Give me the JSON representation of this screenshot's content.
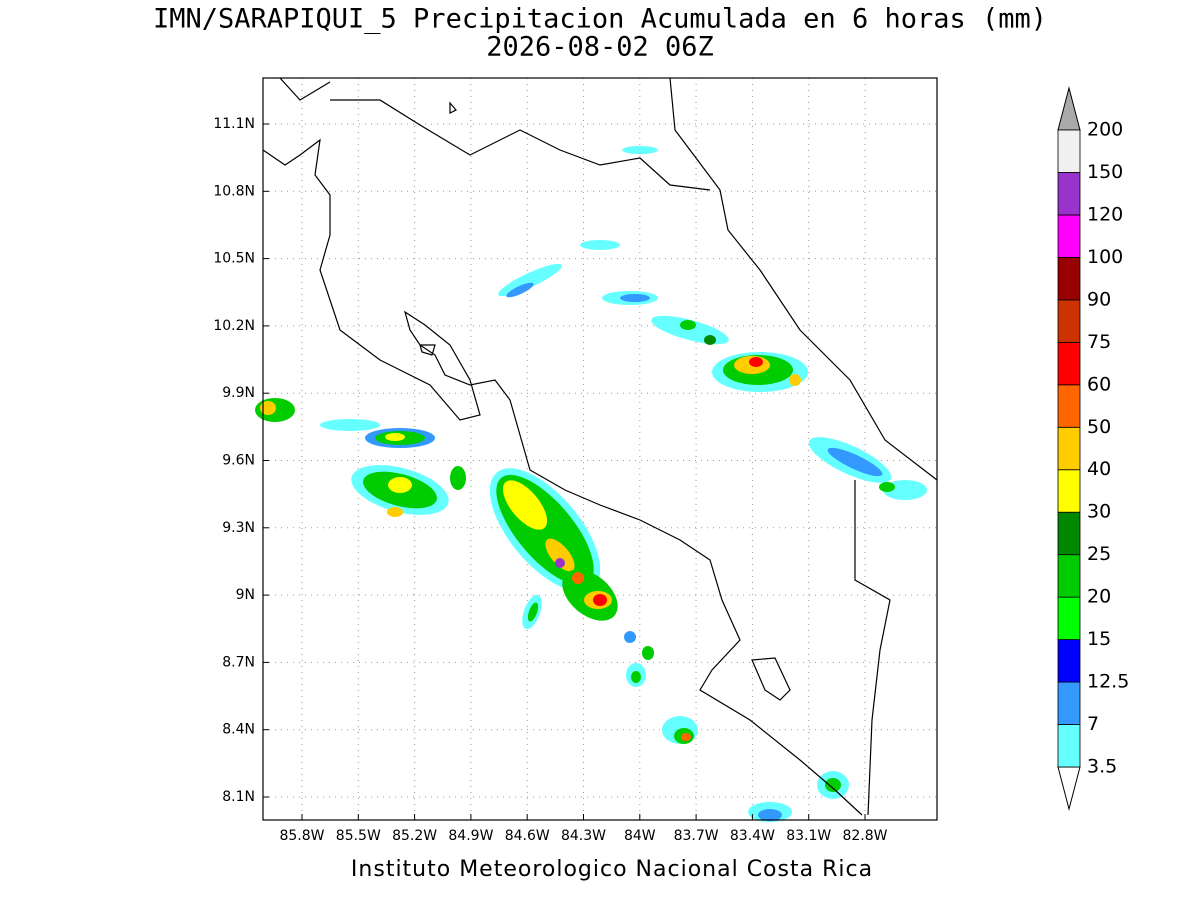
{
  "header": {
    "title": "IMN/SARAPIQUI_5 Precipitacion Acumulada en 6 horas (mm)",
    "subtitle": "2026-08-02 06Z"
  },
  "map": {
    "lat_labels": [
      "11.1N",
      "10.8N",
      "10.5N",
      "10.2N",
      "9.9N",
      "9.6N",
      "9.3N",
      "9N",
      "8.7N",
      "8.4N",
      "8.1N"
    ],
    "lon_labels": [
      "85.8W",
      "85.5W",
      "85.2W",
      "84.9W",
      "84.6W",
      "84.3W",
      "84W",
      "83.7W",
      "83.4W",
      "83.1W",
      "82.8W"
    ]
  },
  "colorbar": {
    "levels": [
      3.5,
      7,
      12.5,
      15,
      20,
      25,
      30,
      40,
      50,
      60,
      75,
      90,
      100,
      120,
      150,
      200
    ],
    "colors": [
      "#66ffff",
      "#3399ff",
      "#0000ff",
      "#00ff00",
      "#00cc00",
      "#008800",
      "#ffff00",
      "#ffcc00",
      "#ff6600",
      "#ff0000",
      "#cc3300",
      "#990000",
      "#ff00ff",
      "#9933cc",
      "#f0f0f0"
    ],
    "under_color": "#ffffff",
    "over_color": "#aaaaaa"
  },
  "footer": "Instituto Meteorologico Nacional Costa Rica"
}
